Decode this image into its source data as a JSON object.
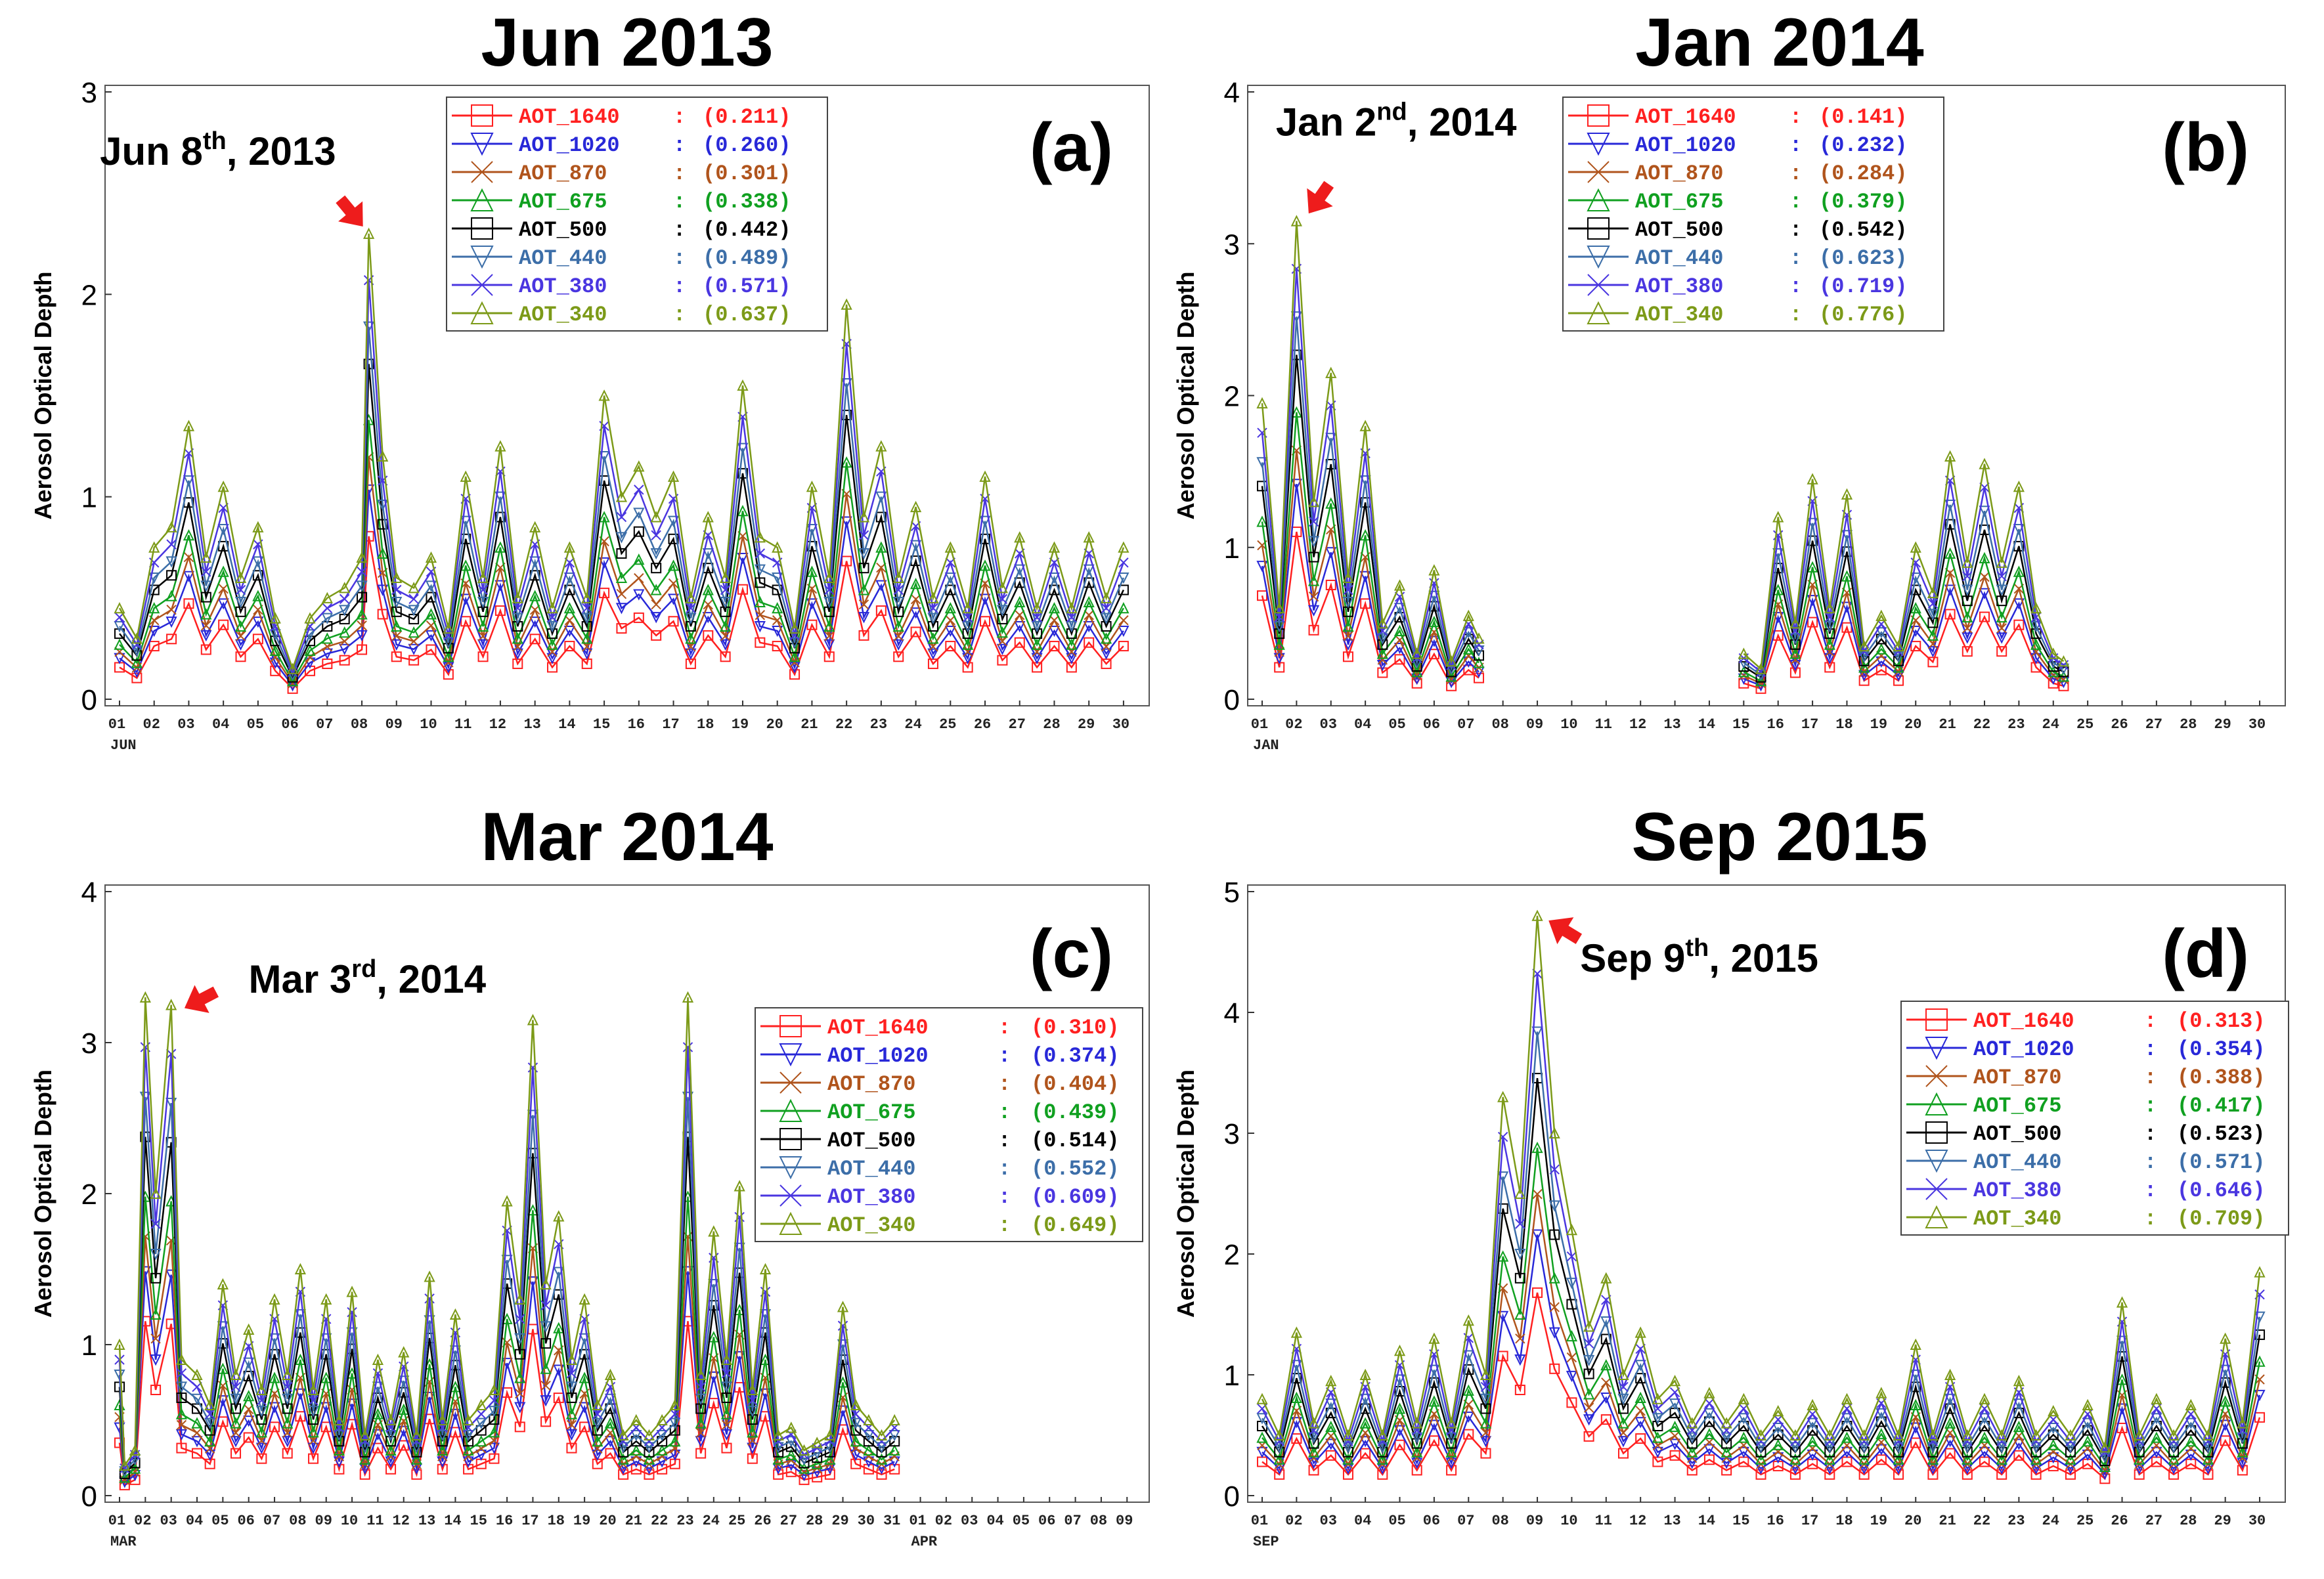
{
  "figure": {
    "description_label": "Aerosol Optical Depth time series, four months",
    "colors": {
      "AOT_1640": "#ff2020",
      "AOT_1020": "#2828d8",
      "AOT_870": "#b0541c",
      "AOT_675": "#10a020",
      "AOT_500": "#000000",
      "AOT_440": "#3c6ea8",
      "AOT_380": "#4a36e0",
      "AOT_340": "#7c9a18",
      "arrow": "#ee1c1c"
    }
  },
  "chart_data": [
    {
      "type": "line",
      "panel_label": "(a)",
      "title": "Jun 2013",
      "ylabel": "Aerosol Optical Depth",
      "ylim": [
        0,
        3
      ],
      "yticks": [
        "0",
        "1",
        "2",
        "3"
      ],
      "xticks": [
        "01",
        "02",
        "03",
        "04",
        "05",
        "06",
        "07",
        "08",
        "09",
        "10",
        "11",
        "12",
        "13",
        "14",
        "15",
        "16",
        "17",
        "18",
        "19",
        "20",
        "21",
        "22",
        "23",
        "24",
        "25",
        "26",
        "27",
        "28",
        "29",
        "30"
      ],
      "month_labels": [
        {
          "label": "JUN",
          "day": 1
        }
      ],
      "n_days": 30,
      "annotation": {
        "text_main": "Jun 8",
        "text_sup": "th",
        "text_rest": ", 2013",
        "day": 8.2,
        "value": 2.3
      },
      "legend_position": "top-center",
      "legend": [
        {
          "name": "AOT_1640",
          "mean": "(0.211)"
        },
        {
          "name": "AOT_1020",
          "mean": "(0.260)"
        },
        {
          "name": "AOT_870",
          "mean": "(0.301)"
        },
        {
          "name": "AOT_675",
          "mean": "(0.338)"
        },
        {
          "name": "AOT_500",
          "mean": "(0.442)"
        },
        {
          "name": "AOT_440",
          "mean": "(0.489)"
        },
        {
          "name": "AOT_380",
          "mean": "(0.571)"
        },
        {
          "name": "AOT_340",
          "mean": "(0.637)"
        }
      ],
      "series_340": [
        [
          1,
          0.45
        ],
        [
          1.5,
          0.3
        ],
        [
          2,
          0.75
        ],
        [
          2.5,
          0.85
        ],
        [
          3,
          1.35
        ],
        [
          3.5,
          0.7
        ],
        [
          4,
          1.05
        ],
        [
          4.5,
          0.6
        ],
        [
          5,
          0.85
        ],
        [
          5.5,
          0.4
        ],
        [
          6,
          0.15
        ],
        [
          6.5,
          0.4
        ],
        [
          7,
          0.5
        ],
        [
          7.5,
          0.55
        ],
        [
          8,
          0.7
        ],
        [
          8.2,
          2.3
        ],
        [
          8.6,
          1.2
        ],
        [
          9,
          0.6
        ],
        [
          9.5,
          0.55
        ],
        [
          10,
          0.7
        ],
        [
          10.5,
          0.35
        ],
        [
          11,
          1.1
        ],
        [
          11.5,
          0.6
        ],
        [
          12,
          1.25
        ],
        [
          12.5,
          0.5
        ],
        [
          13,
          0.85
        ],
        [
          13.5,
          0.45
        ],
        [
          14,
          0.75
        ],
        [
          14.5,
          0.5
        ],
        [
          15,
          1.5
        ],
        [
          15.5,
          1.0
        ],
        [
          16,
          1.15
        ],
        [
          16.5,
          0.9
        ],
        [
          17,
          1.1
        ],
        [
          17.5,
          0.5
        ],
        [
          18,
          0.9
        ],
        [
          18.5,
          0.6
        ],
        [
          19,
          1.55
        ],
        [
          19.5,
          0.8
        ],
        [
          20,
          0.75
        ],
        [
          20.5,
          0.35
        ],
        [
          21,
          1.05
        ],
        [
          21.5,
          0.6
        ],
        [
          22,
          1.95
        ],
        [
          22.5,
          0.9
        ],
        [
          23,
          1.25
        ],
        [
          23.5,
          0.6
        ],
        [
          24,
          0.95
        ],
        [
          24.5,
          0.5
        ],
        [
          25,
          0.75
        ],
        [
          25.5,
          0.45
        ],
        [
          26,
          1.1
        ],
        [
          26.5,
          0.55
        ],
        [
          27,
          0.8
        ],
        [
          27.5,
          0.45
        ],
        [
          28,
          0.75
        ],
        [
          28.5,
          0.45
        ],
        [
          29,
          0.8
        ],
        [
          29.5,
          0.5
        ],
        [
          30,
          0.75
        ]
      ]
    },
    {
      "type": "line",
      "panel_label": "(b)",
      "title": "Jan 2014",
      "ylabel": "Aerosol Optical Depth",
      "ylim": [
        0,
        4
      ],
      "yticks": [
        "0",
        "1",
        "2",
        "3",
        "4"
      ],
      "xticks": [
        "01",
        "02",
        "03",
        "04",
        "05",
        "06",
        "07",
        "08",
        "09",
        "10",
        "11",
        "12",
        "13",
        "14",
        "15",
        "16",
        "17",
        "18",
        "19",
        "20",
        "21",
        "22",
        "23",
        "24",
        "25",
        "26",
        "27",
        "28",
        "29",
        "30"
      ],
      "month_labels": [
        {
          "label": "JAN",
          "day": 1
        }
      ],
      "n_days": 30,
      "annotation": {
        "text_main": "Jan 2",
        "text_sup": "nd",
        "text_rest": ", 2014",
        "day": 2.2,
        "value": 3.15
      },
      "legend_position": "top-center",
      "legend": [
        {
          "name": "AOT_1640",
          "mean": "(0.141)"
        },
        {
          "name": "AOT_1020",
          "mean": "(0.232)"
        },
        {
          "name": "AOT_870",
          "mean": "(0.284)"
        },
        {
          "name": "AOT_675",
          "mean": "(0.379)"
        },
        {
          "name": "AOT_500",
          "mean": "(0.542)"
        },
        {
          "name": "AOT_440",
          "mean": "(0.623)"
        },
        {
          "name": "AOT_380",
          "mean": "(0.719)"
        },
        {
          "name": "AOT_340",
          "mean": "(0.776)"
        }
      ],
      "series_340": [
        [
          1,
          1.95
        ],
        [
          1.5,
          0.6
        ],
        [
          2,
          3.15
        ],
        [
          2.5,
          1.3
        ],
        [
          3,
          2.15
        ],
        [
          3.5,
          0.8
        ],
        [
          4,
          1.8
        ],
        [
          4.5,
          0.5
        ],
        [
          5,
          0.75
        ],
        [
          5.5,
          0.3
        ],
        [
          6,
          0.85
        ],
        [
          6.5,
          0.25
        ],
        [
          7,
          0.55
        ],
        [
          7.3,
          0.4
        ],
        null,
        [
          15,
          0.3
        ],
        [
          15.5,
          0.2
        ],
        [
          16,
          1.2
        ],
        [
          16.5,
          0.5
        ],
        [
          17,
          1.45
        ],
        [
          17.5,
          0.6
        ],
        [
          18,
          1.35
        ],
        [
          18.5,
          0.35
        ],
        [
          19,
          0.55
        ],
        [
          19.5,
          0.35
        ],
        [
          20,
          1.0
        ],
        [
          20.5,
          0.7
        ],
        [
          21,
          1.6
        ],
        [
          21.5,
          0.9
        ],
        [
          22,
          1.55
        ],
        [
          22.5,
          0.9
        ],
        [
          23,
          1.4
        ],
        [
          23.5,
          0.6
        ],
        [
          24,
          0.3
        ],
        [
          24.3,
          0.25
        ]
      ]
    },
    {
      "type": "line",
      "panel_label": "(c)",
      "title": "Mar 2014",
      "ylabel": "Aerosol Optical Depth",
      "ylim": [
        0,
        4
      ],
      "yticks": [
        "0",
        "1",
        "2",
        "3",
        "4"
      ],
      "xticks": [
        "01",
        "02",
        "03",
        "04",
        "05",
        "06",
        "07",
        "08",
        "09",
        "10",
        "11",
        "12",
        "13",
        "14",
        "15",
        "16",
        "17",
        "18",
        "19",
        "20",
        "21",
        "22",
        "23",
        "24",
        "25",
        "26",
        "27",
        "28",
        "29",
        "30",
        "31",
        "01",
        "02",
        "03",
        "04",
        "05",
        "06",
        "07",
        "08",
        "09"
      ],
      "month_labels": [
        {
          "label": "MAR",
          "day": 1
        },
        {
          "label": "APR",
          "day": 32
        }
      ],
      "n_days": 40,
      "annotation": {
        "text_main": "Mar 3",
        "text_sup": "rd",
        "text_rest": ",  2014",
        "day": 3.2,
        "value": 3.2
      },
      "legend_position": "right",
      "legend": [
        {
          "name": "AOT_1640",
          "mean": "(0.310)"
        },
        {
          "name": "AOT_1020",
          "mean": "(0.374)"
        },
        {
          "name": "AOT_870",
          "mean": "(0.404)"
        },
        {
          "name": "AOT_675",
          "mean": "(0.439)"
        },
        {
          "name": "AOT_500",
          "mean": "(0.514)"
        },
        {
          "name": "AOT_440",
          "mean": "(0.552)"
        },
        {
          "name": "AOT_380",
          "mean": "(0.609)"
        },
        {
          "name": "AOT_340",
          "mean": "(0.649)"
        }
      ],
      "series_340": [
        [
          1,
          1.0
        ],
        [
          1.2,
          0.2
        ],
        [
          1.6,
          0.3
        ],
        [
          2,
          3.3
        ],
        [
          2.4,
          2.0
        ],
        [
          3,
          3.25
        ],
        [
          3.4,
          0.9
        ],
        [
          4,
          0.8
        ],
        [
          4.5,
          0.6
        ],
        [
          5,
          1.4
        ],
        [
          5.5,
          0.8
        ],
        [
          6,
          1.1
        ],
        [
          6.5,
          0.7
        ],
        [
          7,
          1.3
        ],
        [
          7.5,
          0.8
        ],
        [
          8,
          1.5
        ],
        [
          8.5,
          0.7
        ],
        [
          9,
          1.3
        ],
        [
          9.5,
          0.5
        ],
        [
          10,
          1.35
        ],
        [
          10.5,
          0.4
        ],
        [
          11,
          0.9
        ],
        [
          11.5,
          0.5
        ],
        [
          12,
          0.95
        ],
        [
          12.5,
          0.4
        ],
        [
          13,
          1.45
        ],
        [
          13.5,
          0.5
        ],
        [
          14,
          1.2
        ],
        [
          14.5,
          0.5
        ],
        [
          15,
          0.6
        ],
        [
          15.5,
          0.7
        ],
        [
          16,
          1.95
        ],
        [
          16.5,
          1.3
        ],
        [
          17,
          3.15
        ],
        [
          17.5,
          1.4
        ],
        [
          18,
          1.85
        ],
        [
          18.5,
          0.9
        ],
        [
          19,
          1.3
        ],
        [
          19.5,
          0.6
        ],
        [
          20,
          0.8
        ],
        [
          20.5,
          0.4
        ],
        [
          21,
          0.5
        ],
        [
          21.5,
          0.4
        ],
        [
          22,
          0.5
        ],
        [
          22.5,
          0.6
        ],
        [
          23,
          3.3
        ],
        [
          23.5,
          0.8
        ],
        [
          24,
          1.75
        ],
        [
          24.5,
          0.9
        ],
        [
          25,
          2.05
        ],
        [
          25.5,
          0.7
        ],
        [
          26,
          1.5
        ],
        [
          26.5,
          0.4
        ],
        [
          27,
          0.45
        ],
        [
          27.5,
          0.3
        ],
        [
          28,
          0.35
        ],
        [
          28.5,
          0.4
        ],
        [
          29,
          1.25
        ],
        [
          29.5,
          0.6
        ],
        [
          30,
          0.5
        ],
        [
          30.5,
          0.4
        ],
        [
          31,
          0.5
        ]
      ]
    },
    {
      "type": "line",
      "panel_label": "(d)",
      "title": "Sep 2015",
      "ylabel": "Aerosol Optical Depth",
      "ylim": [
        0,
        5
      ],
      "yticks": [
        "0",
        "1",
        "2",
        "3",
        "4",
        "5"
      ],
      "xticks": [
        "01",
        "02",
        "03",
        "04",
        "05",
        "06",
        "07",
        "08",
        "09",
        "10",
        "11",
        "12",
        "13",
        "14",
        "15",
        "16",
        "17",
        "18",
        "19",
        "20",
        "21",
        "22",
        "23",
        "24",
        "25",
        "26",
        "27",
        "28",
        "29",
        "30"
      ],
      "month_labels": [
        {
          "label": "SEP",
          "day": 1
        }
      ],
      "n_days": 30,
      "annotation": {
        "text_main": "Sep 9",
        "text_sup": "th",
        "text_rest": ", 2015",
        "day": 9.1,
        "value": 4.8
      },
      "legend_position": "right",
      "legend": [
        {
          "name": "AOT_1640",
          "mean": "(0.313)"
        },
        {
          "name": "AOT_1020",
          "mean": "(0.354)"
        },
        {
          "name": "AOT_870",
          "mean": "(0.388)"
        },
        {
          "name": "AOT_675",
          "mean": "(0.417)"
        },
        {
          "name": "AOT_500",
          "mean": "(0.523)"
        },
        {
          "name": "AOT_440",
          "mean": "(0.571)"
        },
        {
          "name": "AOT_380",
          "mean": "(0.646)"
        },
        {
          "name": "AOT_340",
          "mean": "(0.709)"
        }
      ],
      "series_340": [
        [
          1,
          0.8
        ],
        [
          1.5,
          0.5
        ],
        [
          2,
          1.35
        ],
        [
          2.5,
          0.6
        ],
        [
          3,
          0.95
        ],
        [
          3.5,
          0.5
        ],
        [
          4,
          1.0
        ],
        [
          4.5,
          0.5
        ],
        [
          5,
          1.2
        ],
        [
          5.5,
          0.6
        ],
        [
          6,
          1.3
        ],
        [
          6.5,
          0.6
        ],
        [
          7,
          1.45
        ],
        [
          7.5,
          1.0
        ],
        [
          8,
          3.3
        ],
        [
          8.5,
          2.5
        ],
        [
          9,
          4.8
        ],
        [
          9.5,
          3.0
        ],
        [
          10,
          2.2
        ],
        [
          10.5,
          1.4
        ],
        [
          11,
          1.8
        ],
        [
          11.5,
          1.0
        ],
        [
          12,
          1.35
        ],
        [
          12.5,
          0.8
        ],
        [
          13,
          0.95
        ],
        [
          13.5,
          0.6
        ],
        [
          14,
          0.85
        ],
        [
          14.5,
          0.6
        ],
        [
          15,
          0.8
        ],
        [
          15.5,
          0.5
        ],
        [
          16,
          0.7
        ],
        [
          16.5,
          0.5
        ],
        [
          17,
          0.75
        ],
        [
          17.5,
          0.5
        ],
        [
          18,
          0.8
        ],
        [
          18.5,
          0.5
        ],
        [
          19,
          0.85
        ],
        [
          19.5,
          0.5
        ],
        [
          20,
          1.25
        ],
        [
          20.5,
          0.5
        ],
        [
          21,
          1.0
        ],
        [
          21.5,
          0.5
        ],
        [
          22,
          0.8
        ],
        [
          22.5,
          0.5
        ],
        [
          23,
          0.95
        ],
        [
          23.5,
          0.5
        ],
        [
          24,
          0.7
        ],
        [
          24.5,
          0.5
        ],
        [
          25,
          0.75
        ],
        [
          25.5,
          0.4
        ],
        [
          26,
          1.6
        ],
        [
          26.5,
          0.5
        ],
        [
          27,
          0.8
        ],
        [
          27.5,
          0.5
        ],
        [
          28,
          0.75
        ],
        [
          28.5,
          0.5
        ],
        [
          29,
          1.3
        ],
        [
          29.5,
          0.6
        ],
        [
          30,
          1.85
        ]
      ]
    }
  ]
}
